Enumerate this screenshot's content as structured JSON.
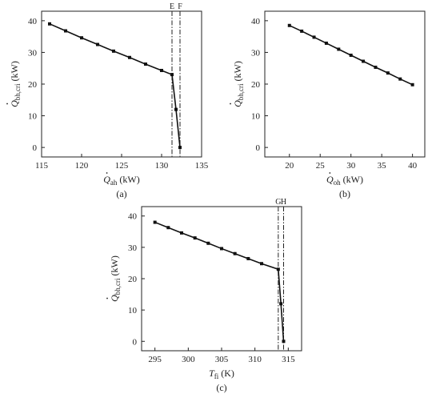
{
  "chart_data": [
    {
      "id": "a",
      "type": "line",
      "panel_label": "(a)",
      "xlabel": {
        "prefix": "",
        "main": "Q",
        "sub": "ah",
        "unit": " (kW)"
      },
      "ylabel": {
        "main": "Q",
        "sub": "bh,cri",
        "unit": " (kW)"
      },
      "dot_over_x": true,
      "xlim": [
        115,
        135
      ],
      "ylim": [
        -3,
        43
      ],
      "xticks": [
        "115",
        "120",
        "125",
        "130",
        "135"
      ],
      "yticks": [
        "0",
        "10",
        "20",
        "30",
        "40"
      ],
      "vlines": [
        {
          "x": 131.3,
          "label": "E"
        },
        {
          "x": 132.3,
          "label": "F"
        }
      ],
      "x": [
        116,
        118,
        120,
        122,
        124,
        126,
        128,
        130,
        131.3,
        131.8,
        132.3
      ],
      "y": [
        39,
        36.8,
        34.6,
        32.5,
        30.4,
        28.4,
        26.3,
        24.3,
        23,
        12,
        0
      ]
    },
    {
      "id": "b",
      "type": "line",
      "panel_label": "(b)",
      "xlabel": {
        "main": "Q",
        "sub": "oh",
        "unit": " (kW)"
      },
      "ylabel": {
        "main": "Q",
        "sub": "bh,cri",
        "unit": " (kW)"
      },
      "dot_over_x": true,
      "xlim": [
        16,
        42
      ],
      "ylim": [
        -3,
        43
      ],
      "xticks": [
        "20",
        "25",
        "30",
        "35",
        "40"
      ],
      "yticks": [
        "0",
        "10",
        "20",
        "30",
        "40"
      ],
      "vlines": [],
      "x": [
        20,
        22,
        24,
        26,
        28,
        30,
        32,
        34,
        36,
        38,
        40
      ],
      "y": [
        38.5,
        36.7,
        34.8,
        32.9,
        31,
        29.1,
        27.2,
        25.3,
        23.5,
        21.6,
        19.8
      ]
    },
    {
      "id": "c",
      "type": "line",
      "panel_label": "(c)",
      "xlabel": {
        "main": "T",
        "sub": "fi",
        "unit": " (K)"
      },
      "ylabel": {
        "main": "Q",
        "sub": "bh,cri",
        "unit": " (kW)"
      },
      "dot_over_x": false,
      "xlim": [
        293,
        317
      ],
      "ylim": [
        -3,
        43
      ],
      "xticks": [
        "295",
        "300",
        "305",
        "310",
        "315"
      ],
      "yticks": [
        "0",
        "10",
        "20",
        "30",
        "40"
      ],
      "vlines": [
        {
          "x": 313.5,
          "label": "G"
        },
        {
          "x": 314.3,
          "label": "H"
        }
      ],
      "x": [
        295,
        297,
        299,
        301,
        303,
        305,
        307,
        309,
        311,
        313.5,
        313.9,
        314.3
      ],
      "y": [
        38,
        36.3,
        34.6,
        33,
        31.3,
        29.6,
        28,
        26.4,
        24.8,
        23,
        12,
        0
      ]
    }
  ]
}
